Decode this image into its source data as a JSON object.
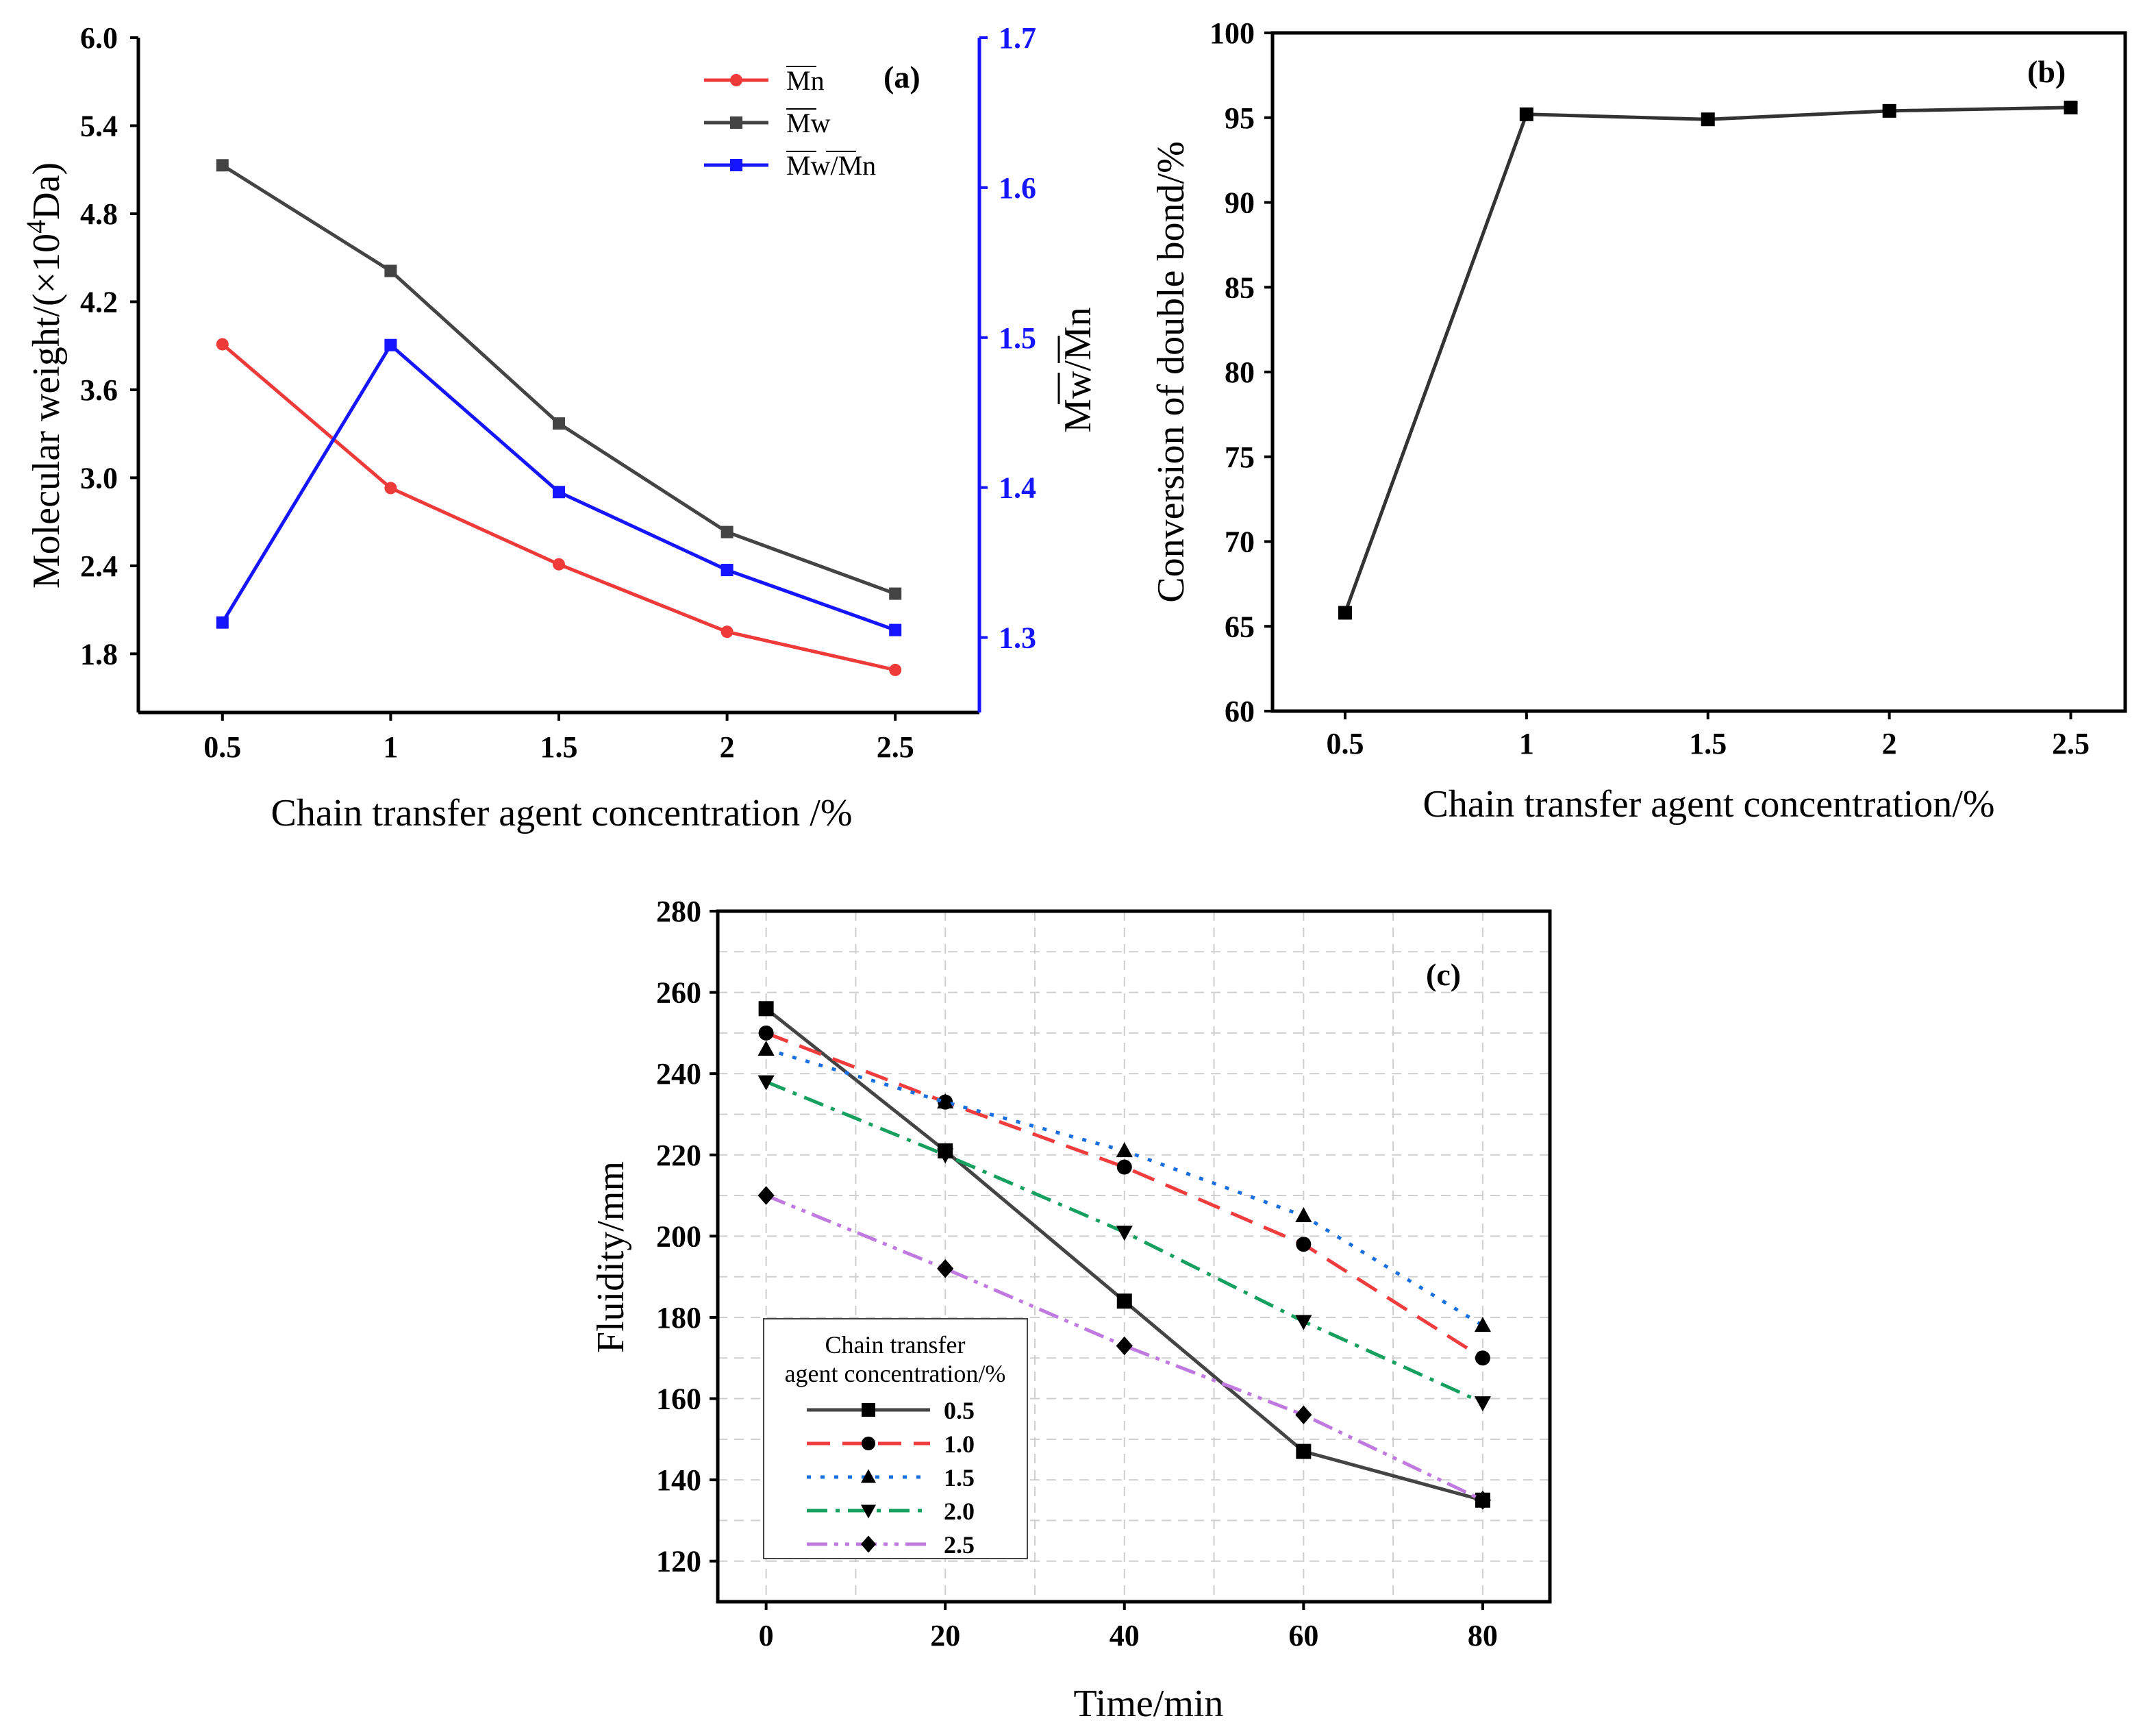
{
  "chart_data": [
    {
      "id": "a",
      "type": "line",
      "panel_label": "(a)",
      "xlabel": "Chain transfer agent concentration /%",
      "ylabel": "Molecular weight/(×10⁴Da)",
      "ylabel_parts": {
        "pre": "Molecular weight/(×10",
        "sup": "4",
        "post": "Da)"
      },
      "y2label": "Mw/Mn",
      "categories": [
        "0.5",
        "1",
        "1.5",
        "2",
        "2.5"
      ],
      "x": [
        0.5,
        1,
        1.5,
        2,
        2.5
      ],
      "xlim": [
        0.25,
        2.75
      ],
      "ylim": [
        1.4,
        6.0
      ],
      "y2lim": [
        1.25,
        1.7
      ],
      "yticks": [
        "6.0",
        "5.4",
        "4.8",
        "4.2",
        "3.6",
        "3.0",
        "2.4",
        "1.8"
      ],
      "y2ticks": [
        "1.7",
        "1.6",
        "1.5",
        "1.4",
        "1.3"
      ],
      "series": [
        {
          "name": "Mn",
          "axis": "left",
          "color": "#ef3a3a",
          "marker": "circle",
          "values": [
            3.91,
            2.93,
            2.41,
            1.95,
            1.69
          ]
        },
        {
          "name": "Mw",
          "axis": "left",
          "color": "#444444",
          "marker": "square",
          "values": [
            5.13,
            4.41,
            3.37,
            2.63,
            2.21
          ]
        },
        {
          "name": "Mw/Mn",
          "axis": "right",
          "color": "#1515ff",
          "marker": "square",
          "values": [
            1.31,
            1.495,
            1.397,
            1.345,
            1.305
          ]
        }
      ],
      "legend_position": "top-right"
    },
    {
      "id": "b",
      "type": "line",
      "panel_label": "(b)",
      "xlabel": "Chain transfer agent concentration/%",
      "ylabel": "Conversion of double bond/%",
      "categories": [
        "0.5",
        "1",
        "1.5",
        "2",
        "2.5"
      ],
      "x": [
        0.5,
        1,
        1.5,
        2,
        2.5
      ],
      "xlim": [
        0.3,
        2.65
      ],
      "ylim": [
        60,
        100
      ],
      "yticks": [
        "100",
        "95",
        "90",
        "85",
        "80",
        "75",
        "70",
        "65",
        "60"
      ],
      "series": [
        {
          "name": "Conversion",
          "color": "#333333",
          "marker": "square",
          "values": [
            65.8,
            95.2,
            94.9,
            95.4,
            95.6
          ]
        }
      ]
    },
    {
      "id": "c",
      "type": "line",
      "panel_label": "(c)",
      "xlabel": "Time/min",
      "ylabel": "Fluidity/mm",
      "x": [
        0,
        20,
        40,
        60,
        80
      ],
      "xticks": [
        "0",
        "20",
        "40",
        "60",
        "80"
      ],
      "xlim": [
        -5.4,
        87.5
      ],
      "ylim": [
        110,
        280
      ],
      "yticks": [
        "280",
        "260",
        "240",
        "220",
        "200",
        "180",
        "160",
        "140",
        "120"
      ],
      "grid": true,
      "legend_title": [
        "Chain transfer",
        "agent concentration/%"
      ],
      "legend_position": "bottom-left",
      "series": [
        {
          "name": "0.5",
          "color": "#444444",
          "dash": "solid",
          "marker": "square",
          "values": [
            256,
            221,
            184,
            147,
            135
          ]
        },
        {
          "name": "1.0",
          "color": "#f03c3c",
          "dash": "dash",
          "marker": "circle",
          "values": [
            250,
            233,
            217,
            198,
            170
          ]
        },
        {
          "name": "1.5",
          "color": "#1a6fe0",
          "dash": "dot",
          "marker": "triangle-up",
          "values": [
            246,
            233,
            221,
            205,
            178
          ]
        },
        {
          "name": "2.0",
          "color": "#16a060",
          "dash": "dashdot",
          "marker": "triangle-down",
          "values": [
            238,
            220,
            201,
            179,
            159
          ]
        },
        {
          "name": "2.5",
          "color": "#c07adf",
          "dash": "dashdotdot",
          "marker": "diamond",
          "values": [
            210,
            192,
            173,
            156,
            135
          ]
        }
      ]
    }
  ]
}
